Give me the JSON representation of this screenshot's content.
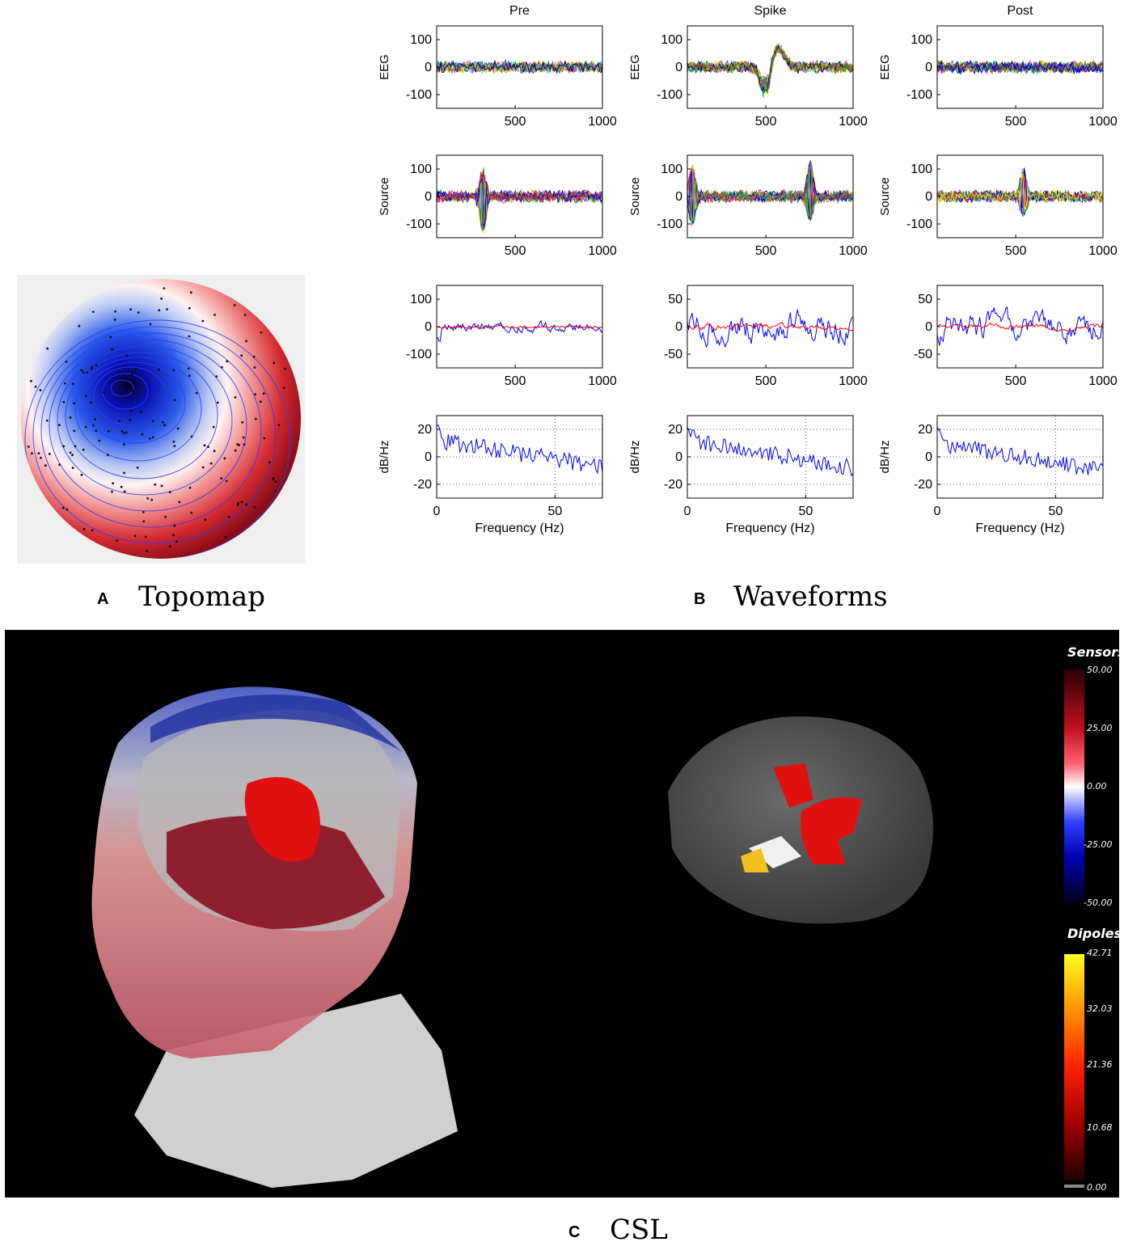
{
  "panels": {
    "a": {
      "letter": "A",
      "title": "Topomap"
    },
    "b": {
      "letter": "B",
      "title": "Waveforms"
    },
    "c": {
      "letter": "C",
      "title": "CSL"
    }
  },
  "chart_data": [
    {
      "type": "line",
      "panel": "B",
      "columns": [
        "Pre",
        "Spike",
        "Post"
      ],
      "rows": [
        {
          "ylabel": "EEG",
          "xlim": [
            50,
            1000
          ],
          "ylim": [
            -150,
            150
          ],
          "yticks": [
            100,
            0,
            -100
          ],
          "xticks": [
            500,
            1000
          ],
          "xticklabels": [
            "500",
            "1000"
          ],
          "grid": false,
          "description": "overlaid multichannel EEG traces"
        },
        {
          "ylabel": "Source",
          "xlim": [
            50,
            1000
          ],
          "ylim": [
            -150,
            150
          ],
          "yticks": [
            100,
            0,
            -100
          ],
          "xticks": [
            500,
            1000
          ],
          "xticklabels": [
            "500",
            "1000"
          ],
          "grid": false
        },
        {
          "ylabel": "",
          "xlim": [
            50,
            1000
          ],
          "yticks_by_column": [
            [
              100,
              0,
              -100
            ],
            [
              50,
              0,
              -50
            ],
            [
              50,
              0,
              -50
            ]
          ],
          "xticks": [
            500,
            1000
          ],
          "xticklabels": [
            "500",
            "1000"
          ],
          "grid": false,
          "series_colors": [
            "#0000ff",
            "#ff0000"
          ]
        },
        {
          "ylabel": "dB/Hz",
          "xlabel": "Frequency (Hz)",
          "xlim": [
            0,
            70
          ],
          "ylim": [
            -30,
            30
          ],
          "yticks": [
            20,
            0,
            -20
          ],
          "xticks": [
            0,
            50
          ],
          "xticklabels": [
            "0",
            "50"
          ],
          "grid": true,
          "line_color": "#0000ff",
          "psd_start_by_column": [
            12,
            12,
            10
          ],
          "psd_end_by_column": [
            -7,
            -8,
            -10
          ]
        }
      ]
    },
    {
      "type": "heatmap",
      "panel": "C",
      "colorbars": [
        {
          "title": "Sensors",
          "tick_labels": [
            "50.00",
            "25.00",
            "0.00",
            "-25.00",
            "-50.00"
          ],
          "colors": [
            "#2a0008",
            "#c0101e",
            "#ff3040",
            "#ffffff",
            "#3040ff",
            "#0000b0",
            "#000018"
          ]
        },
        {
          "title": "Dipoles",
          "tick_labels": [
            "42.71",
            "32.03",
            "21.36",
            "10.68",
            "0.00"
          ],
          "colors": [
            "#ffff20",
            "#ff9000",
            "#ff2000",
            "#a00000",
            "#200000"
          ]
        }
      ]
    }
  ],
  "colors": {
    "blue_trace": "#0000ff",
    "red_trace": "#ff0000",
    "scene_background": "#000000"
  }
}
